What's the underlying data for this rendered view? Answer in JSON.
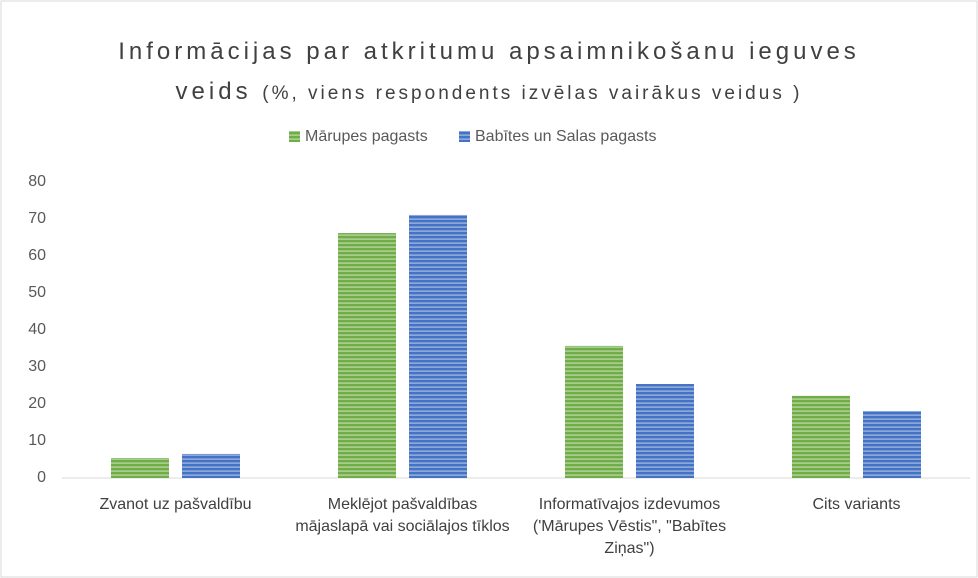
{
  "chart_data": {
    "type": "bar",
    "title": "Informācijas par atkritumu apsaimnikošanu ieguves veids",
    "subtitle": "(%, viens respondents izvēlas vairākus veidus )",
    "categories": [
      "Zvanot uz pašvaldību",
      "Meklējot pašvaldības mājaslapā vai sociālajos tīklos",
      "Informatīvajos izdevumos ('Mārupes Vēstis\", \"Babītes Ziņas\")",
      "Cits variants"
    ],
    "series": [
      {
        "name": "Mārupes pagasts",
        "color": "#70ad47",
        "values": [
          5.4,
          66.2,
          35.7,
          22.2
        ]
      },
      {
        "name": "Babītes un Salas pagasts",
        "color": "#4472c4",
        "values": [
          6.5,
          71.1,
          25.4,
          18.1
        ]
      }
    ],
    "ylim": [
      0,
      80
    ],
    "yticks": [
      0,
      10,
      20,
      30,
      40,
      50,
      60,
      70,
      80
    ],
    "grid": false,
    "legend": "top"
  }
}
